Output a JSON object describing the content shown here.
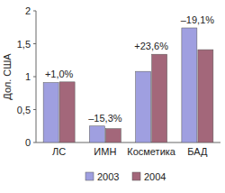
{
  "chart_data": {
    "type": "bar",
    "y_label": "Дол. США",
    "categories": [
      "ЛС",
      "ИМН",
      "Косметика",
      "БАД"
    ],
    "series": [
      {
        "name": "2003",
        "color": "#9f9fe0",
        "values": [
          0.91,
          0.25,
          1.08,
          1.74
        ]
      },
      {
        "name": "2004",
        "color": "#a3677a",
        "values": [
          0.92,
          0.21,
          1.34,
          1.41
        ]
      }
    ],
    "annotations": [
      "+1,0%",
      "–15,3%",
      "+23,6%",
      "–19,1%"
    ],
    "ylim": [
      0,
      2
    ],
    "yticks": [
      0,
      {
        "value": 0.5,
        "label": "0,5"
      },
      1,
      {
        "value": 1.5,
        "label": "1,5"
      },
      2
    ],
    "grid": false,
    "legend": "bottom"
  }
}
